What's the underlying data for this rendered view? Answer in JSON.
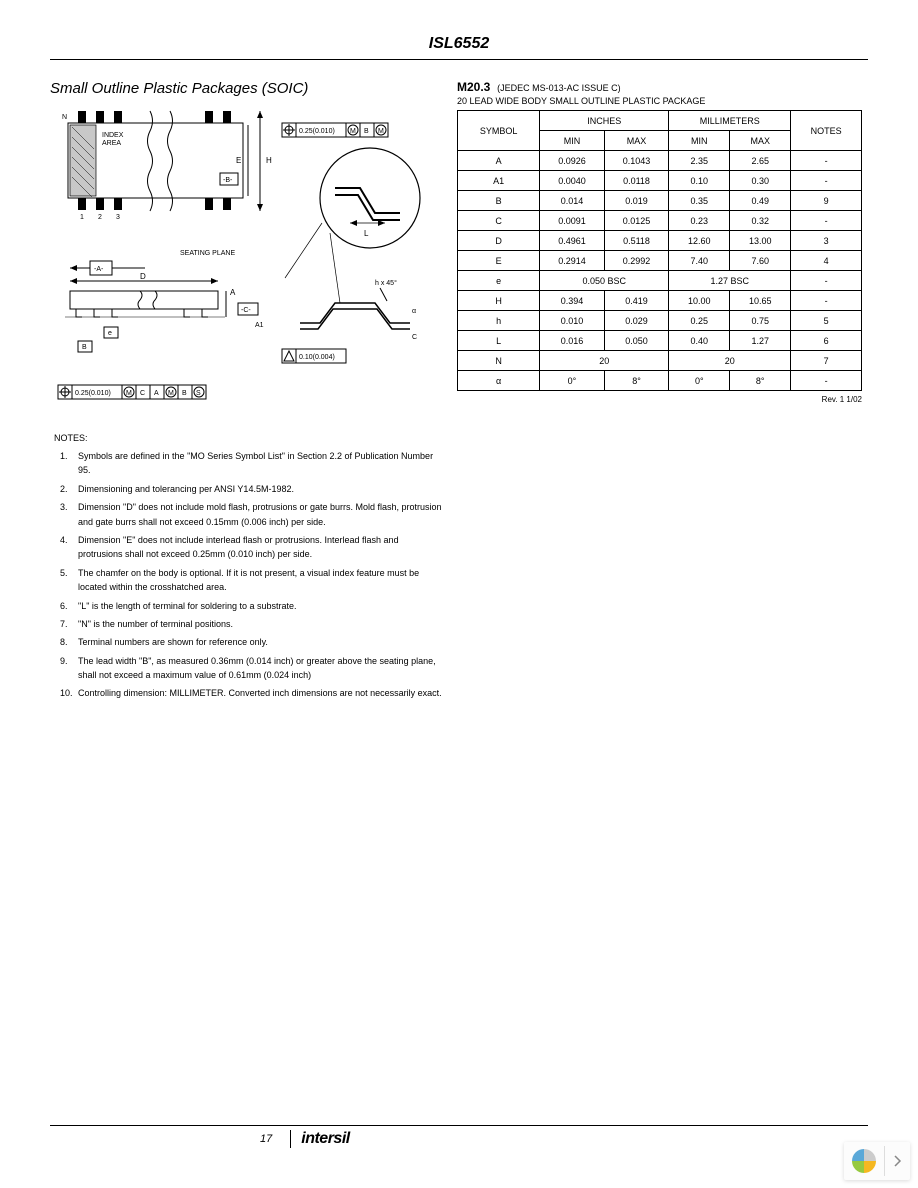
{
  "page": {
    "header_title": "ISL6552",
    "page_number": "17",
    "logo_text": "intersil"
  },
  "left": {
    "section_title": "Small Outline Plastic Packages (SOIC)",
    "diagram_labels": {
      "index_area": "INDEX\nAREA",
      "seating_plane": "SEATING PLANE",
      "gd1": "0.25(0.010)",
      "gd2": "0.10(0.004)",
      "gd3": "0.25(0.010)",
      "sym_M": "M",
      "sym_B": "B",
      "sym_A": "A",
      "sym_C": "C",
      "sym_D": "D",
      "sym_E": "E",
      "sym_H": "H",
      "sym_L": "L",
      "sym_e": "e",
      "sym_h": "h",
      "sym_alpha": "α",
      "dash_A": "-A-",
      "dash_B": "-B-",
      "dash_C": "-C-",
      "N": "N",
      "one": "1",
      "two": "2",
      "three": "3",
      "hx45": "h x 45°",
      "A1": "A1"
    },
    "notes_header": "NOTES:",
    "notes": [
      "Symbols are defined in the \"MO Series Symbol List\" in Section 2.2 of Publication Number 95.",
      "Dimensioning and tolerancing per ANSI Y14.5M-1982.",
      "Dimension \"D\" does not include mold flash, protrusions or gate burrs. Mold flash, protrusion and gate burrs shall not exceed 0.15mm (0.006 inch) per side.",
      "Dimension \"E\" does not include interlead flash or protrusions. Interlead flash and protrusions shall not exceed 0.25mm (0.010 inch) per side.",
      "The chamfer on the body is optional. If it is not present, a visual index feature must be located within the crosshatched area.",
      "\"L\" is the length of terminal for soldering to a substrate.",
      "\"N\" is the number of terminal positions.",
      "Terminal numbers are shown for reference only.",
      "The lead width \"B\", as measured 0.36mm (0.014 inch) or greater above the seating plane, shall not exceed a maximum value of 0.61mm (0.024 inch)",
      "Controlling dimension: MILLIMETER. Converted inch dimensions are not necessarily exact."
    ]
  },
  "right": {
    "table_code": "M20.3",
    "jedec": "(JEDEC MS-013-AC ISSUE C)",
    "subtitle": "20 LEAD WIDE BODY SMALL OUTLINE PLASTIC PACKAGE",
    "rev": "Rev. 1 1/02",
    "headers": {
      "symbol": "SYMBOL",
      "inches": "INCHES",
      "mm": "MILLIMETERS",
      "min": "MIN",
      "max": "MAX",
      "notes": "NOTES"
    },
    "rows": [
      {
        "sym": "A",
        "in_min": "0.0926",
        "in_max": "0.1043",
        "mm_min": "2.35",
        "mm_max": "2.65",
        "note": "-"
      },
      {
        "sym": "A1",
        "in_min": "0.0040",
        "in_max": "0.0118",
        "mm_min": "0.10",
        "mm_max": "0.30",
        "note": "-"
      },
      {
        "sym": "B",
        "in_min": "0.014",
        "in_max": "0.019",
        "mm_min": "0.35",
        "mm_max": "0.49",
        "note": "9"
      },
      {
        "sym": "C",
        "in_min": "0.0091",
        "in_max": "0.0125",
        "mm_min": "0.23",
        "mm_max": "0.32",
        "note": "-"
      },
      {
        "sym": "D",
        "in_min": "0.4961",
        "in_max": "0.5118",
        "mm_min": "12.60",
        "mm_max": "13.00",
        "note": "3"
      },
      {
        "sym": "E",
        "in_min": "0.2914",
        "in_max": "0.2992",
        "mm_min": "7.40",
        "mm_max": "7.60",
        "note": "4"
      }
    ],
    "row_e": {
      "sym": "e",
      "in": "0.050 BSC",
      "mm": "1.27 BSC",
      "note": "-"
    },
    "rows2": [
      {
        "sym": "H",
        "in_min": "0.394",
        "in_max": "0.419",
        "mm_min": "10.00",
        "mm_max": "10.65",
        "note": "-"
      },
      {
        "sym": "h",
        "in_min": "0.010",
        "in_max": "0.029",
        "mm_min": "0.25",
        "mm_max": "0.75",
        "note": "5"
      },
      {
        "sym": "L",
        "in_min": "0.016",
        "in_max": "0.050",
        "mm_min": "0.40",
        "mm_max": "1.27",
        "note": "6"
      }
    ],
    "row_N": {
      "sym": "N",
      "in": "20",
      "mm": "20",
      "note": "7"
    },
    "row_alpha": {
      "sym": "α",
      "in_min": "0°",
      "in_max": "8°",
      "mm_min": "0°",
      "mm_max": "8°",
      "note": "-"
    }
  },
  "colors": {
    "text": "#000000",
    "bg": "#ffffff",
    "line": "#000000",
    "widget_y": "#f5b820",
    "widget_g": "#96c940",
    "widget_b": "#5aa8d8",
    "widget_gray": "#cccccc"
  }
}
